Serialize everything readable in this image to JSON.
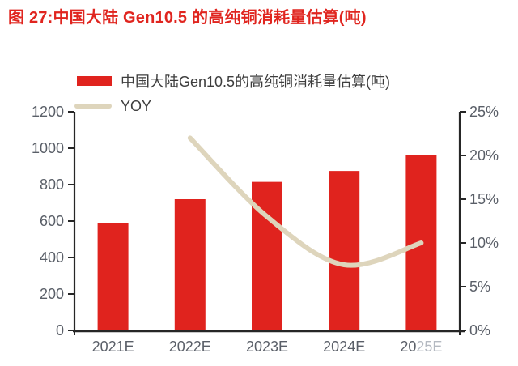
{
  "title": {
    "text": "图 27:中国大陆 Gen10.5 的高纯铜消耗量估算(吨)",
    "color": "#e0251f"
  },
  "legend": {
    "items": [
      {
        "label": "中国大陆Gen10.5的高纯铜消耗量估算(吨)",
        "type": "bar"
      },
      {
        "label": "YOY",
        "type": "line"
      }
    ]
  },
  "colors": {
    "bar": "#e0231e",
    "line": "#ded5bc",
    "axis": "#262626",
    "tick_label": "#5a5f68",
    "faded_label": "#b4b9c1"
  },
  "chart_data": {
    "type": "bar",
    "title": "中国大陆 Gen10.5 的高纯铜消耗量估算(吨)",
    "categories": [
      "2021E",
      "2022E",
      "2023E",
      "2024E",
      "2025E"
    ],
    "series": [
      {
        "name": "中国大陆Gen10.5的高纯铜消耗量估算(吨)",
        "type": "bar",
        "axis": "left",
        "values": [
          590,
          720,
          815,
          875,
          960
        ]
      },
      {
        "name": "YOY",
        "type": "line",
        "axis": "right",
        "unit": "%",
        "values": [
          null,
          22,
          13,
          7.5,
          10
        ]
      }
    ],
    "left_axis": {
      "min": 0,
      "max": 1200,
      "tick_labels": [
        "0",
        "200",
        "400",
        "600",
        "800",
        "1000",
        "1200"
      ]
    },
    "right_axis": {
      "min": 0,
      "max": 25,
      "tick_labels": [
        "0%",
        "5%",
        "10%",
        "15%",
        "20%",
        "25%"
      ]
    },
    "grid": false,
    "legend_position": "top-left",
    "x_label_note": {
      "index": 4,
      "normal_part": "20",
      "faded_part": "25E"
    }
  }
}
